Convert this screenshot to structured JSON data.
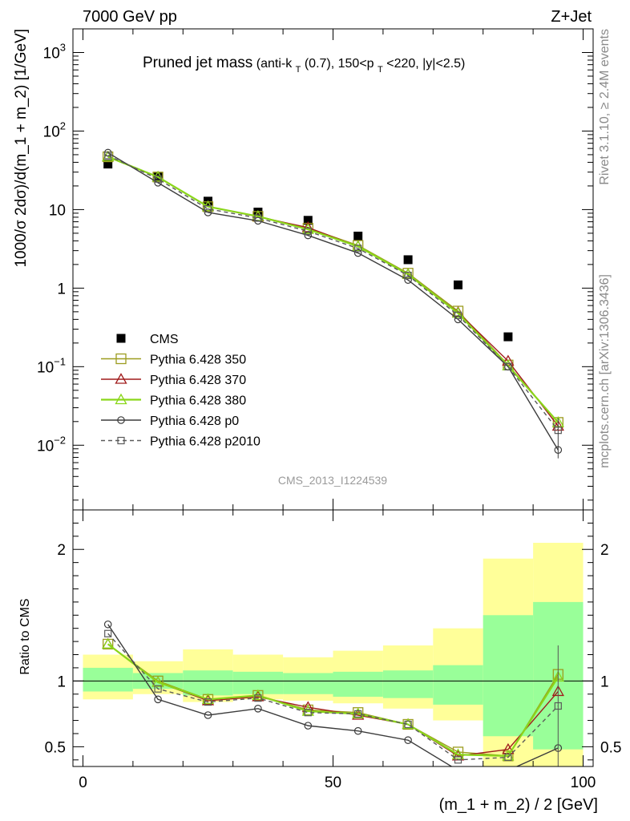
{
  "header": {
    "left": "7000 GeV pp",
    "right": "Z+Jet"
  },
  "side": {
    "rivet": "Rivet 3.1.10, ≥ 2.4M events",
    "mcplots": "mcplots.cern.ch [arXiv:1306.3436]"
  },
  "colors": {
    "cms": "#000000",
    "p350": "#9c9c1f",
    "p370": "#a01c1c",
    "p380": "#8ad61a",
    "p0": "#3c3c3c",
    "p2010": "#5a5a5a",
    "band_inner": "#99ff99",
    "band_outer": "#ffff99"
  },
  "chart_data": [
    {
      "type": "scatter",
      "title": "Pruned jet mass",
      "subtitle_parts": [
        "(anti-k",
        "T",
        "(0.7), 150<p",
        "T",
        "<220, |y|<2.5)"
      ],
      "ylabel": "1000/σ 2dσ)/d(m_1 + m_2) [1/GeV]",
      "yscale": "log",
      "ylim": [
        0.0015,
        2000
      ],
      "xlim": [
        -2,
        102
      ],
      "y_ticks": [
        {
          "base": "10",
          "exp": "−2",
          "value": 0.01
        },
        {
          "base": "10",
          "exp": "−1",
          "value": 0.1
        },
        {
          "base": "1",
          "exp": "",
          "value": 1
        },
        {
          "base": "10",
          "exp": "",
          "value": 10
        },
        {
          "base": "10",
          "exp": "2",
          "value": 100
        },
        {
          "base": "10",
          "exp": "3",
          "value": 1000
        }
      ],
      "watermark": "CMS_2013_I1224539",
      "x": [
        5,
        15,
        25,
        35,
        45,
        55,
        65,
        75,
        85,
        95
      ],
      "series": [
        {
          "name": "CMS",
          "key": "cms",
          "style": "filled-square",
          "values": [
            38,
            26,
            12.8,
            9.3,
            7.3,
            4.6,
            2.3,
            1.1,
            0.24,
            null
          ]
        },
        {
          "name": "Pythia 6.428 350",
          "key": "p350",
          "style": "open-square",
          "line": "solid",
          "values": [
            47,
            26,
            10.9,
            8.2,
            5.8,
            3.5,
            1.55,
            0.51,
            0.105,
            0.0195
          ]
        },
        {
          "name": "Pythia 6.428 370",
          "key": "p370",
          "style": "open-triangle",
          "line": "solid",
          "values": [
            47,
            26,
            10.9,
            8.1,
            5.9,
            3.4,
            1.5,
            0.49,
            0.118,
            0.0175
          ]
        },
        {
          "name": "Pythia 6.428 380",
          "key": "p380",
          "style": "open-triangle",
          "line": "solid",
          "values": [
            47,
            26,
            10.9,
            8.2,
            5.6,
            3.4,
            1.5,
            0.48,
            0.103,
            0.0195
          ]
        },
        {
          "name": "Pythia 6.428 p0",
          "key": "p0",
          "style": "open-circle",
          "line": "solid",
          "values": [
            53,
            22,
            9.2,
            7.2,
            4.7,
            2.8,
            1.27,
            0.4,
            0.1,
            0.0087
          ]
        },
        {
          "name": "Pythia 6.428 p2010",
          "key": "p2010",
          "style": "open-square-small",
          "line": "dashed",
          "values": [
            49,
            24.5,
            10.2,
            7.8,
            5.3,
            3.2,
            1.45,
            0.45,
            0.1,
            0.0155
          ]
        }
      ]
    },
    {
      "type": "scatter",
      "ylabel": "Ratio to CMS",
      "xlabel": "(m_1 + m_2) / 2 [GeV]",
      "ylim": [
        0.35,
        2.3
      ],
      "xlim": [
        -2,
        102
      ],
      "x_ticks": [
        "0",
        "50",
        "100"
      ],
      "y_ticks": [
        "0.5",
        "1",
        "2"
      ],
      "band_edges": [
        0,
        10,
        20,
        30,
        40,
        50,
        60,
        70,
        80,
        90,
        100
      ],
      "band_inner": [
        [
          0.92,
          1.1
        ],
        [
          0.94,
          1.06
        ],
        [
          0.89,
          1.08
        ],
        [
          0.9,
          1.07
        ],
        [
          0.9,
          1.06
        ],
        [
          0.88,
          1.07
        ],
        [
          0.87,
          1.08
        ],
        [
          0.82,
          1.12
        ],
        [
          0.58,
          1.5
        ],
        [
          0.48,
          1.6
        ]
      ],
      "band_outer": [
        [
          0.86,
          1.2
        ],
        [
          0.9,
          1.15
        ],
        [
          0.84,
          1.24
        ],
        [
          0.86,
          1.2
        ],
        [
          0.85,
          1.18
        ],
        [
          0.83,
          1.23
        ],
        [
          0.79,
          1.27
        ],
        [
          0.7,
          1.4
        ],
        [
          0.35,
          1.93
        ],
        [
          0.35,
          2.05
        ]
      ],
      "x": [
        5,
        15,
        25,
        35,
        45,
        55,
        65,
        75,
        85,
        95
      ],
      "series": [
        {
          "name": "Pythia 6.428 350",
          "key": "p350",
          "values": [
            1.28,
            1.0,
            0.86,
            0.89,
            0.78,
            0.76,
            0.67,
            0.46,
            0.43,
            1.05
          ]
        },
        {
          "name": "Pythia 6.428 370",
          "key": "p370",
          "values": [
            1.28,
            0.99,
            0.85,
            0.88,
            0.8,
            0.74,
            0.67,
            0.43,
            0.48,
            0.92
          ]
        },
        {
          "name": "Pythia 6.428 380",
          "key": "p380",
          "values": [
            1.28,
            0.99,
            0.86,
            0.89,
            0.77,
            0.75,
            0.67,
            0.44,
            0.43,
            1.03
          ]
        },
        {
          "name": "Pythia 6.428 p0",
          "key": "p0",
          "values": [
            1.43,
            0.86,
            0.74,
            0.79,
            0.66,
            0.62,
            0.55,
            0.32,
            0.32,
            0.49
          ]
        },
        {
          "name": "Pythia 6.428 p2010",
          "key": "p2010",
          "values": [
            1.36,
            0.94,
            0.84,
            0.87,
            0.76,
            0.75,
            0.67,
            0.4,
            0.42,
            0.81
          ]
        }
      ]
    }
  ]
}
